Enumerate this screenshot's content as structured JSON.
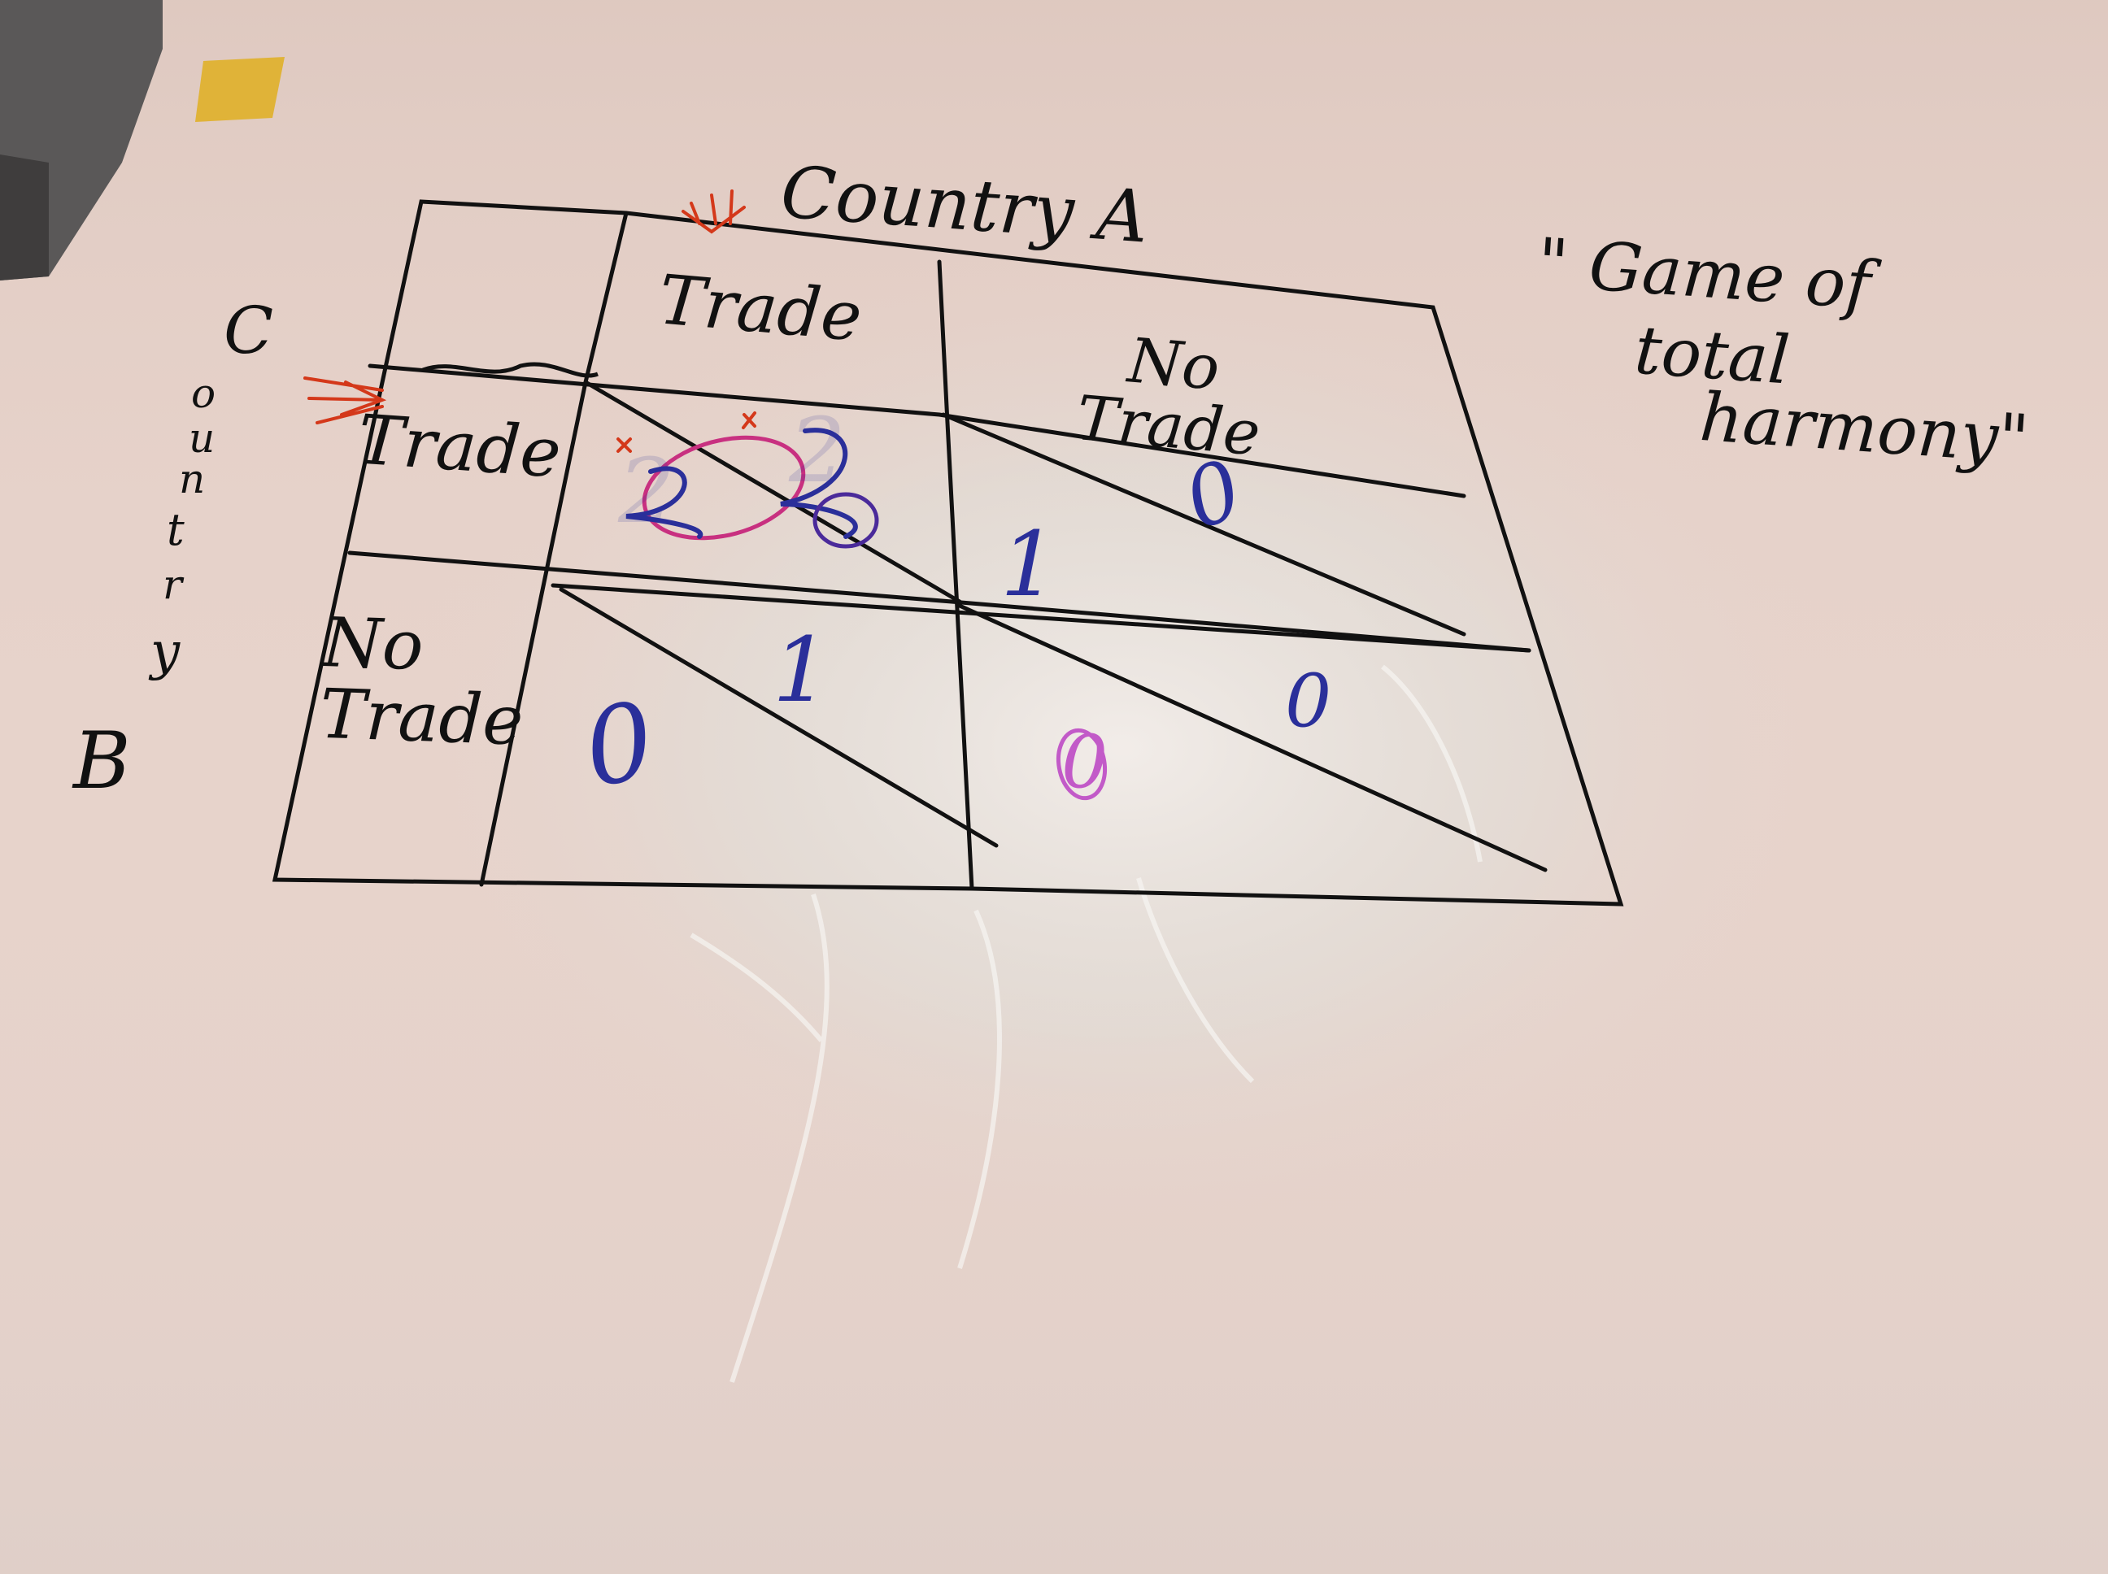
{
  "board": {
    "column_player": "Country A",
    "row_player": "Country B",
    "row_player_letters": [
      "C",
      "o",
      "u",
      "n",
      "t",
      "r",
      "y",
      "B"
    ],
    "column_headers": [
      "Trade",
      "No Trade"
    ],
    "row_headers": [
      "Trade",
      "No Trade"
    ],
    "title_note_line1": "\" Game of",
    "title_note_line2": "total",
    "title_note_line3": "harmony\"",
    "cells": {
      "trade_trade": {
        "top": "2",
        "bottom": "2"
      },
      "trade_notrade": {
        "top": "0",
        "bottom": "1"
      },
      "notrade_trade": {
        "top": "1",
        "bottom": "0"
      },
      "notrade_notrade": {
        "top": "0",
        "bottom": "0"
      }
    }
  },
  "colors": {
    "background": "#e7d3cb",
    "marker_black": "#111111",
    "marker_blue": "#2a2f9a",
    "marker_red": "#d4381a",
    "marker_pink": "#c25ac8",
    "tape_yellow": "#e0b338",
    "box_gray": "#5a5858"
  }
}
